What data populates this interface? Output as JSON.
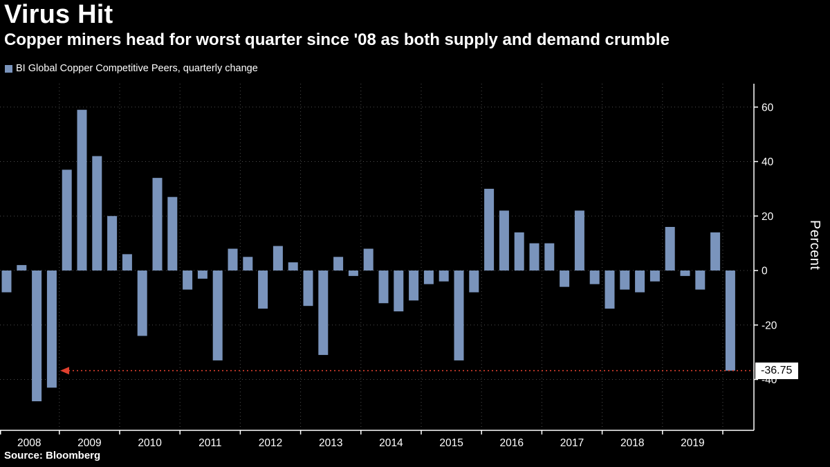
{
  "header": {
    "title": "Virus Hit",
    "subtitle": "Copper miners head for worst quarter since '08 as both supply and demand crumble"
  },
  "legend": {
    "label": "BI Global Copper Competitive Peers, quarterly change"
  },
  "source": "Source:  Bloomberg",
  "colors": {
    "background": "#000000",
    "bar": "#7a94bc",
    "grid": "#4f4f4f",
    "axis": "#ffffff",
    "text": "#ffffff",
    "annotation": "#e0402e",
    "badge_bg": "#ffffff",
    "badge_text": "#000000"
  },
  "chart_data": {
    "type": "bar",
    "title": "Virus Hit",
    "subtitle": "Copper miners head for worst quarter since '08 as both supply and demand crumble",
    "xlabel": "",
    "ylabel": "Percent",
    "ylim": [
      -58,
      69
    ],
    "grid": true,
    "legend_position": "top-left",
    "y_ticks": [
      60,
      40,
      20,
      0,
      -20,
      -40
    ],
    "x_tick_labels": [
      "2008",
      "2009",
      "2010",
      "2011",
      "2012",
      "2013",
      "2014",
      "2015",
      "2016",
      "2017",
      "2018",
      "2019"
    ],
    "categories": [
      "2008 Q1",
      "2008 Q2",
      "2008 Q3",
      "2008 Q4",
      "2009 Q1",
      "2009 Q2",
      "2009 Q3",
      "2009 Q4",
      "2010 Q1",
      "2010 Q2",
      "2010 Q3",
      "2010 Q4",
      "2011 Q1",
      "2011 Q2",
      "2011 Q3",
      "2011 Q4",
      "2012 Q1",
      "2012 Q2",
      "2012 Q3",
      "2012 Q4",
      "2013 Q1",
      "2013 Q2",
      "2013 Q3",
      "2013 Q4",
      "2014 Q1",
      "2014 Q2",
      "2014 Q3",
      "2014 Q4",
      "2015 Q1",
      "2015 Q2",
      "2015 Q3",
      "2015 Q4",
      "2016 Q1",
      "2016 Q2",
      "2016 Q3",
      "2016 Q4",
      "2017 Q1",
      "2017 Q2",
      "2017 Q3",
      "2017 Q4",
      "2018 Q1",
      "2018 Q2",
      "2018 Q3",
      "2018 Q4",
      "2019 Q1",
      "2019 Q2",
      "2019 Q3",
      "2019 Q4",
      "2020 Q1"
    ],
    "series": [
      {
        "name": "BI Global Copper Competitive Peers, quarterly change",
        "values": [
          -8,
          2,
          -48,
          -43,
          37,
          59,
          42,
          20,
          6,
          -24,
          34,
          27,
          -7,
          -3,
          -33,
          8,
          5,
          -14,
          9,
          3,
          -13,
          -31,
          5,
          -2,
          8,
          -12,
          -15,
          -11,
          -5,
          -4,
          -33,
          -8,
          30,
          22,
          14,
          10,
          10,
          -6,
          22,
          -5,
          -14,
          -7,
          -8,
          -4,
          16,
          -2,
          -7,
          14,
          -36.75
        ]
      }
    ],
    "annotation": {
      "value": -36.75,
      "label": "-36.75",
      "line_style": "dotted"
    }
  }
}
